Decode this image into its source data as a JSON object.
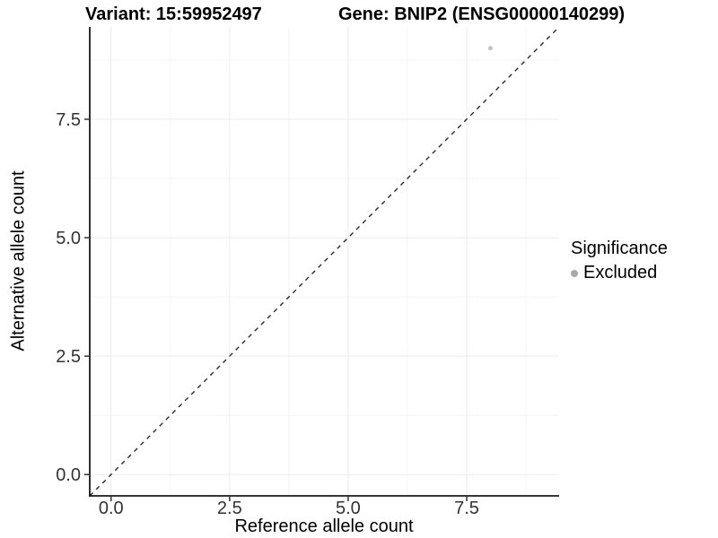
{
  "chart_data": {
    "type": "scatter",
    "titles": [
      "Variant: 15:59952497",
      "Gene: BNIP2 (ENSG00000140299)"
    ],
    "xlabel": "Reference allele count",
    "ylabel": "Alternative allele count",
    "xlim": [
      -0.45,
      9.45
    ],
    "ylim": [
      -0.45,
      9.45
    ],
    "x_ticks": [
      0,
      2.5,
      5,
      7.5
    ],
    "x_tick_labels": [
      "0.0",
      "2.5",
      "5.0",
      "7.5"
    ],
    "y_ticks": [
      0,
      2.5,
      5,
      7.5
    ],
    "y_tick_labels": [
      "0.0",
      "2.5",
      "5.0",
      "7.5"
    ],
    "minor_gridlines": [
      1.25,
      3.75,
      6.25,
      8.75
    ],
    "grid": "major+minor",
    "series": [
      {
        "name": "Excluded",
        "color": "#c3c3c3",
        "point_radius": 2.5,
        "points": [
          {
            "x": 8,
            "y": 9
          }
        ]
      }
    ],
    "reference_line": {
      "kind": "identity",
      "equation": "y = x",
      "style": "dashed",
      "color": "#2a2a2a"
    },
    "legend": {
      "title": "Significance",
      "position": "right",
      "entries": [
        {
          "label": "Excluded",
          "color": "#a9a9a9"
        }
      ]
    },
    "colors": {
      "background": "#ffffff",
      "grid_major": "#ebebeb",
      "grid_minor": "#f4f4f4",
      "axis_line": "#1a1a1a",
      "tick_mark": "#333333",
      "tick_label": "#333333"
    }
  }
}
